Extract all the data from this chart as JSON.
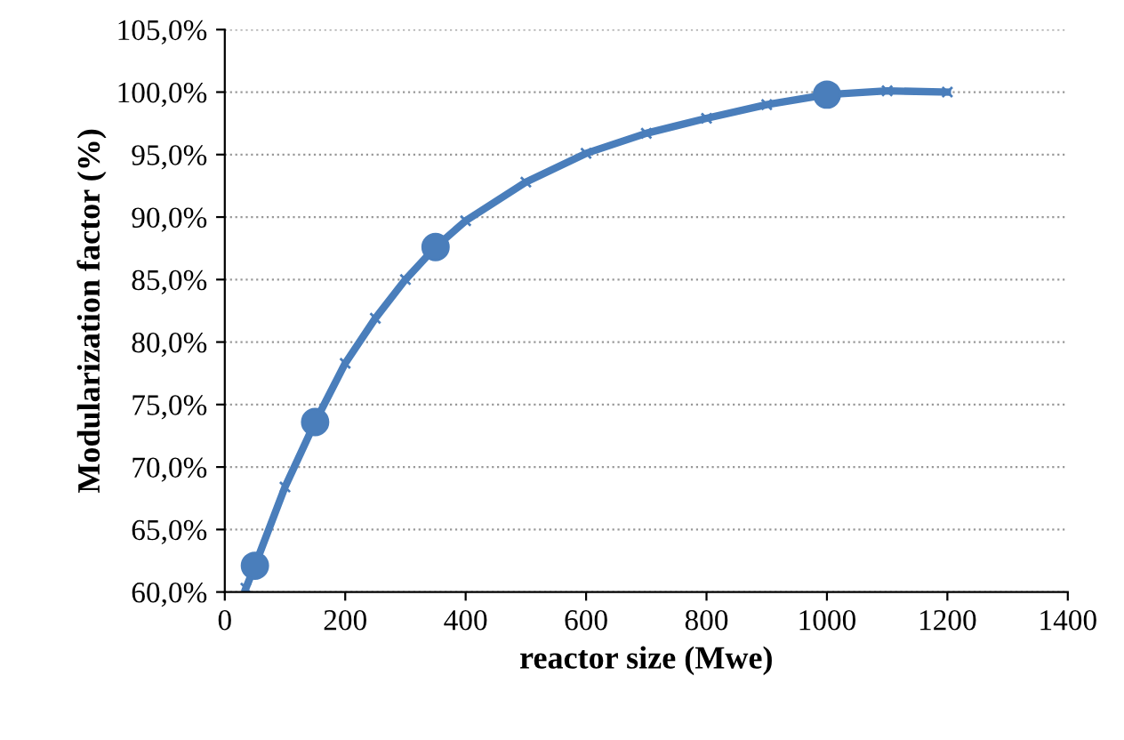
{
  "chart_data": {
    "type": "line",
    "xlabel": "reactor size (Mwe)",
    "ylabel": "Modularization factor (%)",
    "xlim": [
      0,
      1400
    ],
    "xticks": [
      0,
      200,
      400,
      600,
      800,
      1000,
      1200,
      1400
    ],
    "ylim": [
      60,
      105
    ],
    "yticks": [
      {
        "value": 60,
        "label": "60,0%"
      },
      {
        "value": 65,
        "label": "65,0%"
      },
      {
        "value": 70,
        "label": "70,0%"
      },
      {
        "value": 75,
        "label": "75,0%"
      },
      {
        "value": 80,
        "label": "80,0%"
      },
      {
        "value": 85,
        "label": "85,0%"
      },
      {
        "value": 90,
        "label": "90,0%"
      },
      {
        "value": 95,
        "label": "95,0%"
      },
      {
        "value": 100,
        "label": "100,0%"
      },
      {
        "value": 105,
        "label": "105,0%"
      }
    ],
    "grid": "y",
    "series": [
      {
        "marker": "cross",
        "color": "#4a7ebb",
        "x": [
          35,
          50,
          100,
          150,
          200,
          250,
          300,
          350,
          400,
          500,
          600,
          700,
          800,
          900,
          1000,
          1100,
          1200
        ],
        "values": [
          60.3,
          62.1,
          68.4,
          73.6,
          78.3,
          81.9,
          85.0,
          87.6,
          89.7,
          92.8,
          95.1,
          96.7,
          97.9,
          99.0,
          99.8,
          100.1,
          100.0
        ]
      },
      {
        "type": "scatter",
        "marker": "circle",
        "color": "#4a7ebb",
        "x": [
          50,
          150,
          350,
          1000
        ],
        "values": [
          62.1,
          73.6,
          87.6,
          99.8
        ]
      }
    ]
  }
}
